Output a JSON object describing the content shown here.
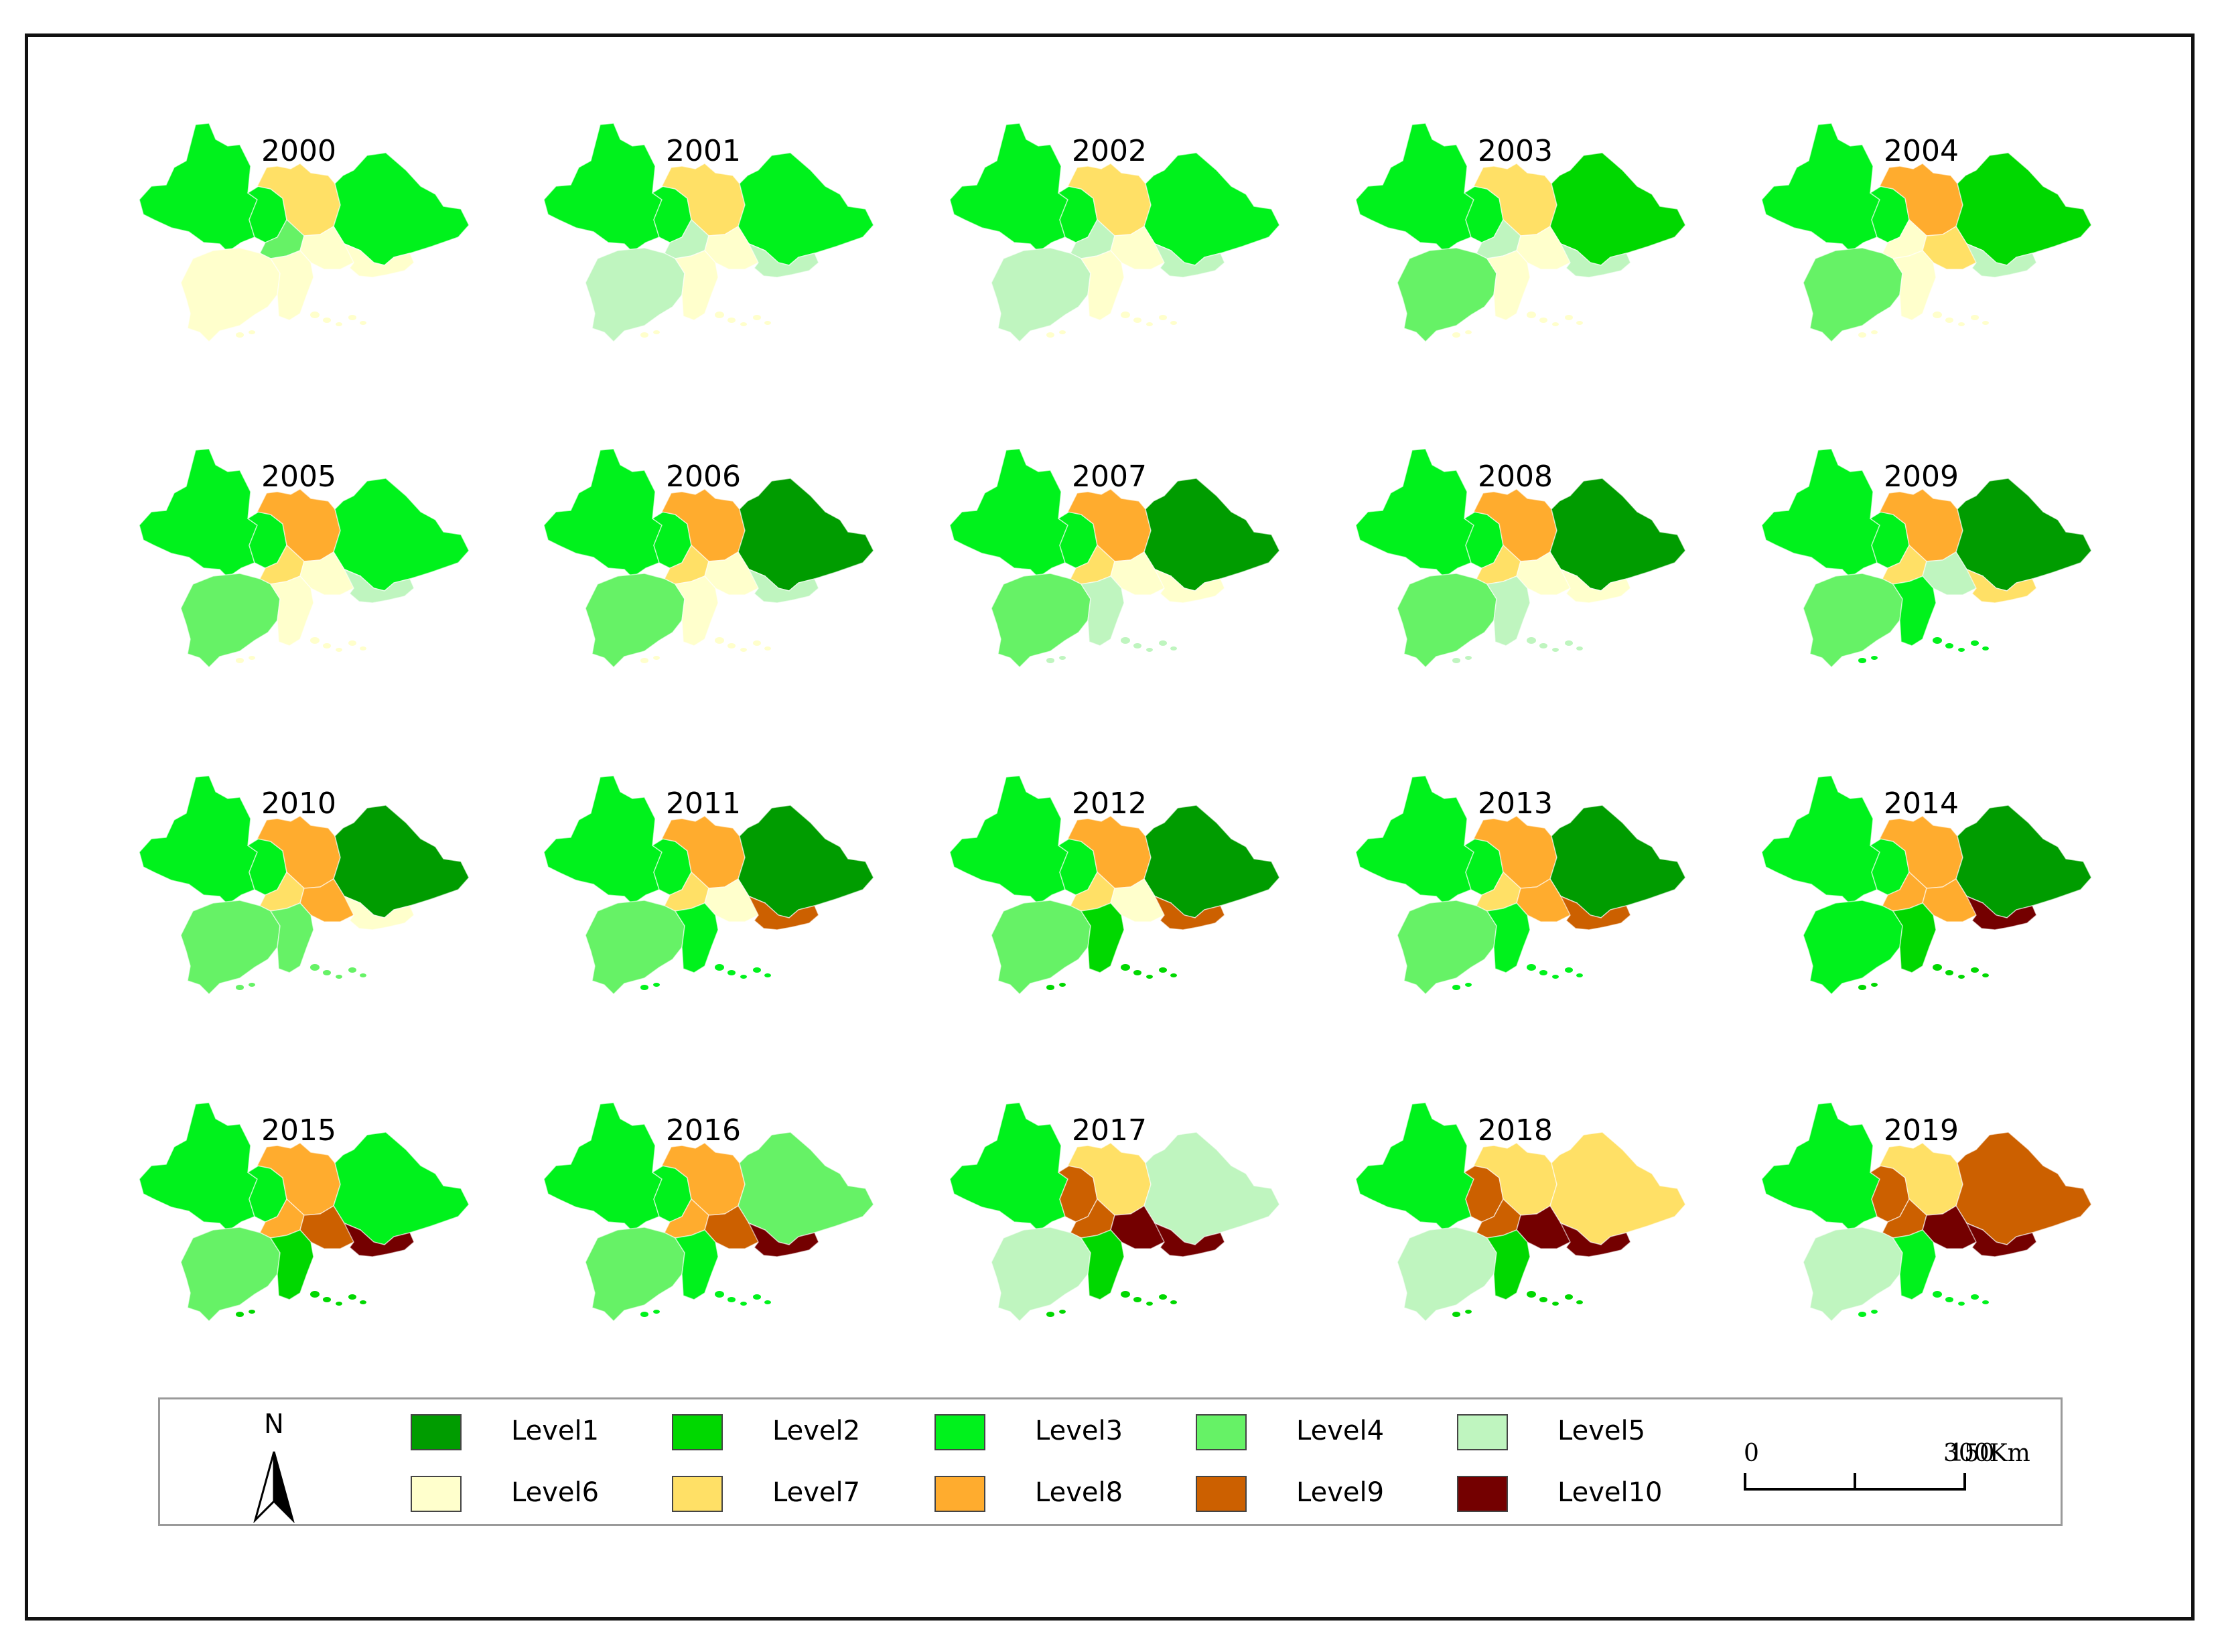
{
  "colors": {
    "Level1": "#009c00",
    "Level2": "#00d800",
    "Level3": "#00f21c",
    "Level4": "#66f266",
    "Level5": "#bff5bf",
    "Level6": "#ffffcc",
    "Level7": "#ffe066",
    "Level8": "#ffac2e",
    "Level9": "#cc6000",
    "Level10": "#740000"
  },
  "maps": [
    {
      "year": "2000",
      "regions": [
        "Level3",
        "Level3",
        "Level7",
        "Level3",
        "Level4",
        "Level6",
        "Level6",
        "Level6",
        "Level6"
      ]
    },
    {
      "year": "2001",
      "regions": [
        "Level3",
        "Level3",
        "Level7",
        "Level3",
        "Level5",
        "Level6",
        "Level5",
        "Level5",
        "Level6"
      ]
    },
    {
      "year": "2002",
      "regions": [
        "Level3",
        "Level3",
        "Level7",
        "Level3",
        "Level5",
        "Level6",
        "Level5",
        "Level5",
        "Level6"
      ]
    },
    {
      "year": "2003",
      "regions": [
        "Level3",
        "Level3",
        "Level7",
        "Level2",
        "Level5",
        "Level6",
        "Level5",
        "Level4",
        "Level6"
      ]
    },
    {
      "year": "2004",
      "regions": [
        "Level3",
        "Level3",
        "Level8",
        "Level2",
        "Level6",
        "Level7",
        "Level5",
        "Level4",
        "Level6"
      ]
    },
    {
      "year": "2005",
      "regions": [
        "Level3",
        "Level3",
        "Level8",
        "Level3",
        "Level7",
        "Level6",
        "Level5",
        "Level4",
        "Level6"
      ]
    },
    {
      "year": "2006",
      "regions": [
        "Level3",
        "Level3",
        "Level8",
        "Level1",
        "Level7",
        "Level6",
        "Level5",
        "Level4",
        "Level6"
      ]
    },
    {
      "year": "2007",
      "regions": [
        "Level3",
        "Level3",
        "Level8",
        "Level1",
        "Level7",
        "Level6",
        "Level6",
        "Level4",
        "Level5"
      ]
    },
    {
      "year": "2008",
      "regions": [
        "Level3",
        "Level3",
        "Level8",
        "Level1",
        "Level7",
        "Level6",
        "Level6",
        "Level4",
        "Level5"
      ]
    },
    {
      "year": "2009",
      "regions": [
        "Level3",
        "Level3",
        "Level8",
        "Level1",
        "Level7",
        "Level5",
        "Level7",
        "Level4",
        "Level3"
      ]
    },
    {
      "year": "2010",
      "regions": [
        "Level3",
        "Level3",
        "Level8",
        "Level1",
        "Level7",
        "Level8",
        "Level6",
        "Level4",
        "Level4"
      ]
    },
    {
      "year": "2011",
      "regions": [
        "Level3",
        "Level3",
        "Level8",
        "Level1",
        "Level7",
        "Level6",
        "Level9",
        "Level4",
        "Level3"
      ]
    },
    {
      "year": "2012",
      "regions": [
        "Level3",
        "Level3",
        "Level8",
        "Level1",
        "Level7",
        "Level6",
        "Level9",
        "Level4",
        "Level2"
      ]
    },
    {
      "year": "2013",
      "regions": [
        "Level3",
        "Level3",
        "Level8",
        "Level1",
        "Level7",
        "Level8",
        "Level9",
        "Level4",
        "Level3"
      ]
    },
    {
      "year": "2014",
      "regions": [
        "Level3",
        "Level3",
        "Level8",
        "Level1",
        "Level8",
        "Level8",
        "Level10",
        "Level3",
        "Level2"
      ]
    },
    {
      "year": "2015",
      "regions": [
        "Level3",
        "Level3",
        "Level8",
        "Level3",
        "Level8",
        "Level9",
        "Level10",
        "Level4",
        "Level2"
      ]
    },
    {
      "year": "2016",
      "regions": [
        "Level3",
        "Level3",
        "Level8",
        "Level4",
        "Level8",
        "Level9",
        "Level10",
        "Level4",
        "Level3"
      ]
    },
    {
      "year": "2017",
      "regions": [
        "Level3",
        "Level9",
        "Level7",
        "Level5",
        "Level9",
        "Level10",
        "Level10",
        "Level5",
        "Level2"
      ]
    },
    {
      "year": "2018",
      "regions": [
        "Level3",
        "Level9",
        "Level7",
        "Level7",
        "Level9",
        "Level10",
        "Level10",
        "Level5",
        "Level2"
      ]
    },
    {
      "year": "2019",
      "regions": [
        "Level3",
        "Level9",
        "Level7",
        "Level9",
        "Level9",
        "Level10",
        "Level10",
        "Level5",
        "Level3"
      ]
    }
  ],
  "legend": {
    "north_label": "N",
    "items": [
      {
        "label": "Level1",
        "color": "#009c00"
      },
      {
        "label": "Level2",
        "color": "#00d800"
      },
      {
        "label": "Level3",
        "color": "#00f21c"
      },
      {
        "label": "Level4",
        "color": "#66f266"
      },
      {
        "label": "Level5",
        "color": "#bff5bf"
      },
      {
        "label": "Level6",
        "color": "#ffffcc"
      },
      {
        "label": "Level7",
        "color": "#ffe066"
      },
      {
        "label": "Level8",
        "color": "#ffac2e"
      },
      {
        "label": "Level9",
        "color": "#cc6000"
      },
      {
        "label": "Level10",
        "color": "#740000"
      }
    ],
    "scale": {
      "tick0": "0",
      "tick1": "150",
      "tick2": "300Km"
    }
  }
}
